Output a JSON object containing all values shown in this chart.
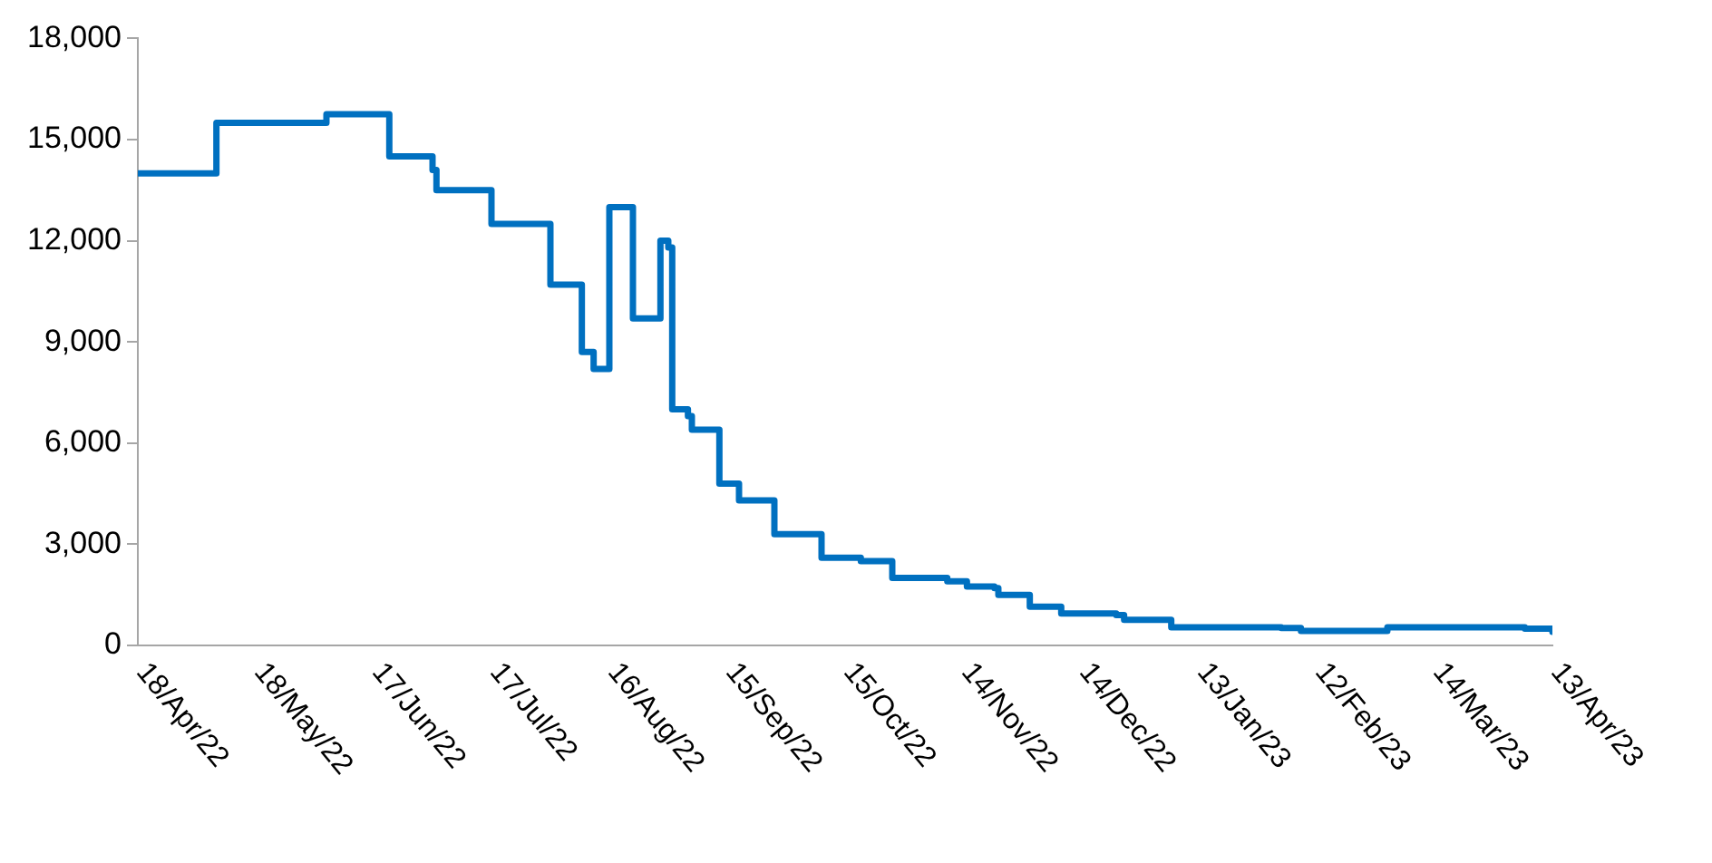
{
  "chart_data": {
    "type": "step",
    "x": [
      "2022-04-18",
      "2022-05-07",
      "2022-05-08",
      "2022-06-03",
      "2022-06-05",
      "2022-06-19",
      "2022-06-21",
      "2022-07-01",
      "2022-07-02",
      "2022-07-03",
      "2022-07-16",
      "2022-07-17",
      "2022-07-30",
      "2022-08-01",
      "2022-08-07",
      "2022-08-09",
      "2022-08-11",
      "2022-08-12",
      "2022-08-14",
      "2022-08-16",
      "2022-08-21",
      "2022-08-22",
      "2022-08-27",
      "2022-08-29",
      "2022-08-31",
      "2022-09-01",
      "2022-09-04",
      "2022-09-05",
      "2022-09-06",
      "2022-09-11",
      "2022-09-13",
      "2022-09-16",
      "2022-09-18",
      "2022-09-24",
      "2022-09-27",
      "2022-10-07",
      "2022-10-09",
      "2022-10-17",
      "2022-10-19",
      "2022-10-25",
      "2022-10-27",
      "2022-11-10",
      "2022-11-15",
      "2022-11-22",
      "2022-11-23",
      "2022-11-29",
      "2022-12-01",
      "2022-12-07",
      "2022-12-09",
      "2022-12-23",
      "2022-12-25",
      "2023-01-01",
      "2023-01-06",
      "2023-02-03",
      "2023-02-08",
      "2023-02-28",
      "2023-03-02",
      "2023-04-06",
      "2023-04-13"
    ],
    "series": [
      {
        "color": "#0070c0",
        "values": [
          14000,
          14000,
          15500,
          15500,
          15750,
          15750,
          14500,
          14500,
          14100,
          13500,
          13500,
          12500,
          12500,
          10700,
          10700,
          8700,
          8700,
          8200,
          8200,
          13000,
          13000,
          9700,
          9700,
          12000,
          11800,
          7000,
          7000,
          6800,
          6400,
          6400,
          4800,
          4800,
          4300,
          4300,
          3300,
          3300,
          2600,
          2600,
          2500,
          2500,
          2000,
          1900,
          1750,
          1700,
          1500,
          1500,
          1150,
          1150,
          950,
          900,
          760,
          760,
          540,
          520,
          430,
          430,
          540,
          500,
          400
        ]
      }
    ],
    "xlim": [
      "2022-04-18",
      "2023-04-13"
    ],
    "xticks": [
      {
        "value": "2022-04-18",
        "label": "18/Apr/22"
      },
      {
        "value": "2022-05-18",
        "label": "18/May/22"
      },
      {
        "value": "2022-06-17",
        "label": "17/Jun/22"
      },
      {
        "value": "2022-07-17",
        "label": "17/Jul/22"
      },
      {
        "value": "2022-08-16",
        "label": "16/Aug/22"
      },
      {
        "value": "2022-09-15",
        "label": "15/Sep/22"
      },
      {
        "value": "2022-10-15",
        "label": "15/Oct/22"
      },
      {
        "value": "2022-11-14",
        "label": "14/Nov/22"
      },
      {
        "value": "2022-12-14",
        "label": "14/Dec/22"
      },
      {
        "value": "2023-01-13",
        "label": "13/Jan/23"
      },
      {
        "value": "2023-02-12",
        "label": "12/Feb/23"
      },
      {
        "value": "2023-03-14",
        "label": "14/Mar/23"
      },
      {
        "value": "2023-04-13",
        "label": "13/Apr/23"
      }
    ],
    "ylim": [
      0,
      18000
    ],
    "yticks": [
      0,
      {
        "value": 3000,
        "label": "3,000"
      },
      {
        "value": 6000,
        "label": "6,000"
      },
      {
        "value": 9000,
        "label": "9,000"
      },
      {
        "value": 12000,
        "label": "12,000"
      },
      {
        "value": 15000,
        "label": "15,000"
      },
      {
        "value": 18000,
        "label": "18,000"
      }
    ],
    "grid": false,
    "legend": false,
    "marker": "none",
    "line_style": "solid"
  }
}
